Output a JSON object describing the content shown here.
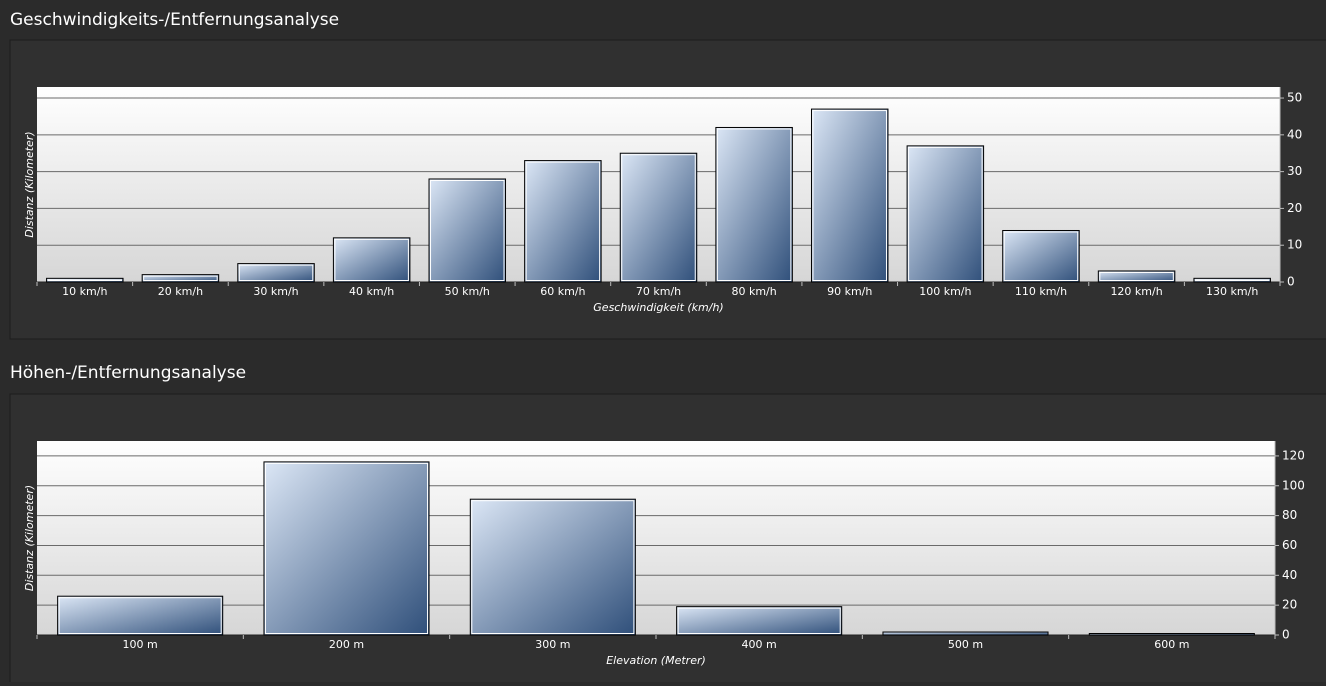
{
  "chart_data": [
    {
      "type": "bar",
      "title": "Geschwindigkeits-/Entfernungsanalyse",
      "x_label": "Geschwindigkeit (km/h)",
      "y_label": "Distanz (Kilometer)",
      "categories": [
        "10 km/h",
        "20 km/h",
        "30 km/h",
        "40 km/h",
        "50 km/h",
        "60 km/h",
        "70 km/h",
        "80 km/h",
        "90 km/h",
        "100 km/h",
        "110 km/h",
        "120 km/h",
        "130 km/h"
      ],
      "values": [
        1,
        2,
        5,
        12,
        28,
        33,
        35,
        42,
        47,
        37,
        14,
        3,
        1
      ],
      "color": "#2f4f7a",
      "ylim": [
        0,
        53
      ],
      "yticks": [
        0,
        10,
        20,
        30,
        40,
        50
      ],
      "grid": true
    },
    {
      "type": "bar",
      "title": "Höhen-/Entfernungsanalyse",
      "x_label": "Elevation (Metrer)",
      "y_label": "Distanz (Kilometer)",
      "categories": [
        "100 m",
        "200 m",
        "300 m",
        "400 m",
        "500 m",
        "600 m"
      ],
      "values": [
        26,
        116,
        91,
        19,
        2,
        1
      ],
      "color": "#2f4f7a",
      "ylim": [
        0,
        130
      ],
      "yticks": [
        0,
        20,
        40,
        60,
        80,
        100,
        120
      ],
      "grid": true
    }
  ]
}
